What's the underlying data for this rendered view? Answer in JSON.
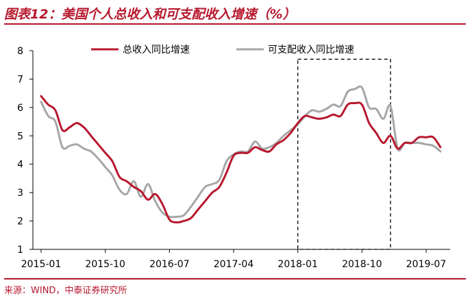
{
  "title": "图表12：美国个人总收入和可支配收入增速（%）",
  "source": "来源：WIND，中泰证券研究所",
  "chart_data": {
    "type": "line",
    "x_tick_labels": [
      "2015-01",
      "2015-10",
      "2016-07",
      "2017-04",
      "2018-01",
      "2018-10",
      "2019-07"
    ],
    "y_ticks": [
      "1",
      "2",
      "3",
      "4",
      "5",
      "6",
      "7",
      "8"
    ],
    "ylim": [
      1,
      8
    ],
    "x_range": [
      "2015-01",
      "2019-09"
    ],
    "grid": false,
    "legend_position": "top",
    "highlight_box": {
      "x_start": "2018-01",
      "x_end": "2019-02",
      "y_start": 1,
      "y_end": 7.7
    },
    "x": [
      "2015-01",
      "2015-02",
      "2015-03",
      "2015-04",
      "2015-05",
      "2015-06",
      "2015-07",
      "2015-08",
      "2015-09",
      "2015-10",
      "2015-11",
      "2015-12",
      "2016-01",
      "2016-02",
      "2016-03",
      "2016-04",
      "2016-05",
      "2016-06",
      "2016-07",
      "2016-08",
      "2016-09",
      "2016-10",
      "2016-11",
      "2016-12",
      "2017-01",
      "2017-02",
      "2017-03",
      "2017-04",
      "2017-05",
      "2017-06",
      "2017-07",
      "2017-08",
      "2017-09",
      "2017-10",
      "2017-11",
      "2017-12",
      "2018-01",
      "2018-02",
      "2018-03",
      "2018-04",
      "2018-05",
      "2018-06",
      "2018-07",
      "2018-08",
      "2018-09",
      "2018-10",
      "2018-11",
      "2018-12",
      "2019-01",
      "2019-02",
      "2019-03",
      "2019-04",
      "2019-05",
      "2019-06",
      "2019-07",
      "2019-08",
      "2019-09"
    ],
    "series": [
      {
        "name": "总收入同比增速",
        "color": "#b7182e",
        "values": [
          6.4,
          6.1,
          5.9,
          5.2,
          5.3,
          5.45,
          5.3,
          5.0,
          4.7,
          4.4,
          4.1,
          3.55,
          3.4,
          3.2,
          3.05,
          2.75,
          2.95,
          2.6,
          2.05,
          1.95,
          2.0,
          2.1,
          2.4,
          2.7,
          3.0,
          3.2,
          3.7,
          4.3,
          4.4,
          4.4,
          4.6,
          4.5,
          4.45,
          4.7,
          4.85,
          5.1,
          5.45,
          5.7,
          5.65,
          5.6,
          5.65,
          5.75,
          5.7,
          6.1,
          6.15,
          6.1,
          5.45,
          5.1,
          4.75,
          5.0,
          4.55,
          4.75,
          4.75,
          4.95,
          4.95,
          4.95,
          4.6
        ]
      },
      {
        "name": "可支配收入同比增速",
        "color": "#a6a6a6",
        "values": [
          6.2,
          5.7,
          5.5,
          4.6,
          4.65,
          4.7,
          4.55,
          4.45,
          4.2,
          3.9,
          3.6,
          3.1,
          2.95,
          3.4,
          2.85,
          3.3,
          2.7,
          2.3,
          2.15,
          2.15,
          2.2,
          2.5,
          2.85,
          3.2,
          3.3,
          3.45,
          4.1,
          4.35,
          4.45,
          4.45,
          4.8,
          4.55,
          4.6,
          4.75,
          5.0,
          5.2,
          5.4,
          5.7,
          5.9,
          5.85,
          5.95,
          6.1,
          6.05,
          6.55,
          6.65,
          6.7,
          6.0,
          5.95,
          5.6,
          6.05,
          4.55,
          4.75,
          4.75,
          4.75,
          4.7,
          4.65,
          4.45
        ]
      }
    ]
  }
}
